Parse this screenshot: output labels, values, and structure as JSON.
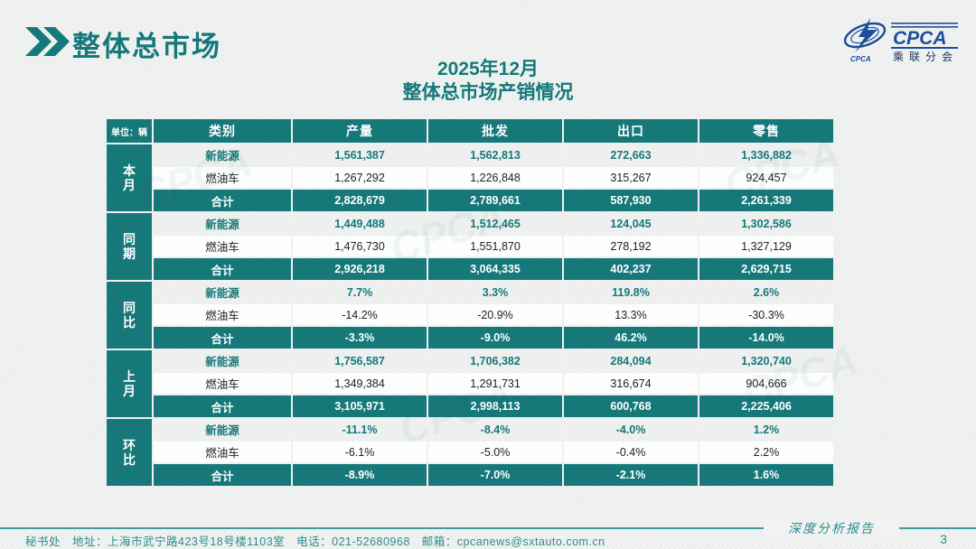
{
  "header": {
    "section_title": "整体总市场",
    "center_title_line1": "2025年12月",
    "center_title_line2": "整体总市场产销情况"
  },
  "logo": {
    "brand": "CPCA",
    "subtitle": "乘联分会",
    "brand_color": "#1b4e9b"
  },
  "watermark_text": "CPCA",
  "table": {
    "unit_label": "单位：辆",
    "columns": [
      "类别",
      "产量",
      "批发",
      "出口",
      "零售"
    ],
    "groups": [
      {
        "label": "本月",
        "rows": [
          {
            "type": "nev",
            "category": "新能源",
            "values": [
              "1,561,387",
              "1,562,813",
              "272,663",
              "1,336,882"
            ]
          },
          {
            "type": "fuel",
            "category": "燃油车",
            "values": [
              "1,267,292",
              "1,226,848",
              "315,267",
              "924,457"
            ]
          },
          {
            "type": "total",
            "category": "合计",
            "values": [
              "2,828,679",
              "2,789,661",
              "587,930",
              "2,261,339"
            ]
          }
        ]
      },
      {
        "label": "同期",
        "rows": [
          {
            "type": "nev",
            "category": "新能源",
            "values": [
              "1,449,488",
              "1,512,465",
              "124,045",
              "1,302,586"
            ]
          },
          {
            "type": "fuel",
            "category": "燃油车",
            "values": [
              "1,476,730",
              "1,551,870",
              "278,192",
              "1,327,129"
            ]
          },
          {
            "type": "total",
            "category": "合计",
            "values": [
              "2,926,218",
              "3,064,335",
              "402,237",
              "2,629,715"
            ]
          }
        ]
      },
      {
        "label": "同比",
        "rows": [
          {
            "type": "nev",
            "category": "新能源",
            "values": [
              "7.7%",
              "3.3%",
              "119.8%",
              "2.6%"
            ]
          },
          {
            "type": "fuel",
            "category": "燃油车",
            "values": [
              "-14.2%",
              "-20.9%",
              "13.3%",
              "-30.3%"
            ]
          },
          {
            "type": "total",
            "category": "合计",
            "values": [
              "-3.3%",
              "-9.0%",
              "46.2%",
              "-14.0%"
            ]
          }
        ]
      },
      {
        "label": "上月",
        "rows": [
          {
            "type": "nev",
            "category": "新能源",
            "values": [
              "1,756,587",
              "1,706,382",
              "284,094",
              "1,320,740"
            ]
          },
          {
            "type": "fuel",
            "category": "燃油车",
            "values": [
              "1,349,384",
              "1,291,731",
              "316,674",
              "904,666"
            ]
          },
          {
            "type": "total",
            "category": "合计",
            "values": [
              "3,105,971",
              "2,998,113",
              "600,768",
              "2,225,406"
            ]
          }
        ]
      },
      {
        "label": "环比",
        "rows": [
          {
            "type": "nev",
            "category": "新能源",
            "values": [
              "-11.1%",
              "-8.4%",
              "-4.0%",
              "1.2%"
            ]
          },
          {
            "type": "fuel",
            "category": "燃油车",
            "values": [
              "-6.1%",
              "-5.0%",
              "-0.4%",
              "2.2%"
            ]
          },
          {
            "type": "total",
            "category": "合计",
            "values": [
              "-8.9%",
              "-7.0%",
              "-2.1%",
              "1.6%"
            ]
          }
        ]
      }
    ]
  },
  "footer": {
    "left_text": "秘书处　地址：上海市武宁路423号18号楼1103室　电话：021-52680968　邮箱：",
    "email": "cpcanews@sxtauto.com.cn",
    "right_label": "深度分析报告",
    "page_number": "3"
  },
  "colors": {
    "teal": "#17787a",
    "title_teal": "#15787a",
    "footer_teal": "#2e8c8c",
    "nev_row_bg": "#edf0ef",
    "page_bg": "#f1f3f2"
  }
}
